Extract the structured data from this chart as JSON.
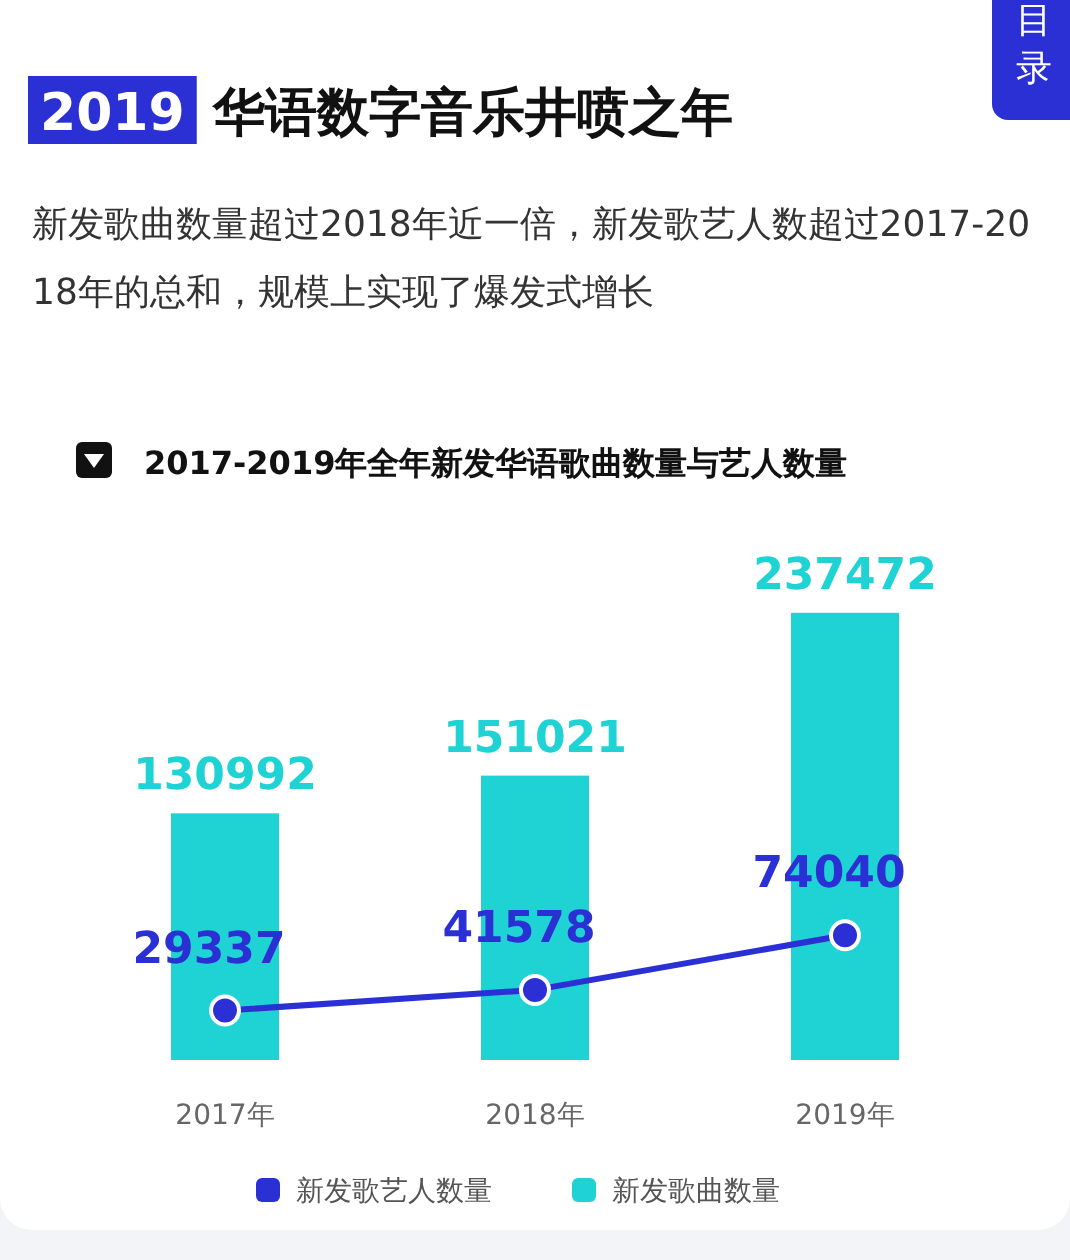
{
  "chart_data": {
    "type": "bar",
    "title": "2019 华语数字音乐井喷之年",
    "subtitle": "新发歌曲数量超过2018年近一倍，新发歌艺人数超过2017-2018年的总和，规模上实现了爆发式增长",
    "annotations": [
      "2017-2019年全年新发华语歌曲数量与艺人数量",
      "目录"
    ],
    "categories": [
      "2017年",
      "2018年",
      "2019年"
    ],
    "series": [
      {
        "name": "新发歌艺人数量",
        "type": "line",
        "axis": "y2",
        "color": "#2b30d4",
        "values": [
          29337,
          41578,
          74040
        ]
      },
      {
        "name": "新发歌曲数量",
        "color": "#1fd3d5",
        "values": [
          130992,
          151021,
          237472
        ]
      }
    ],
    "data_labels": true,
    "legend": "bottom",
    "marker": "circle"
  }
}
